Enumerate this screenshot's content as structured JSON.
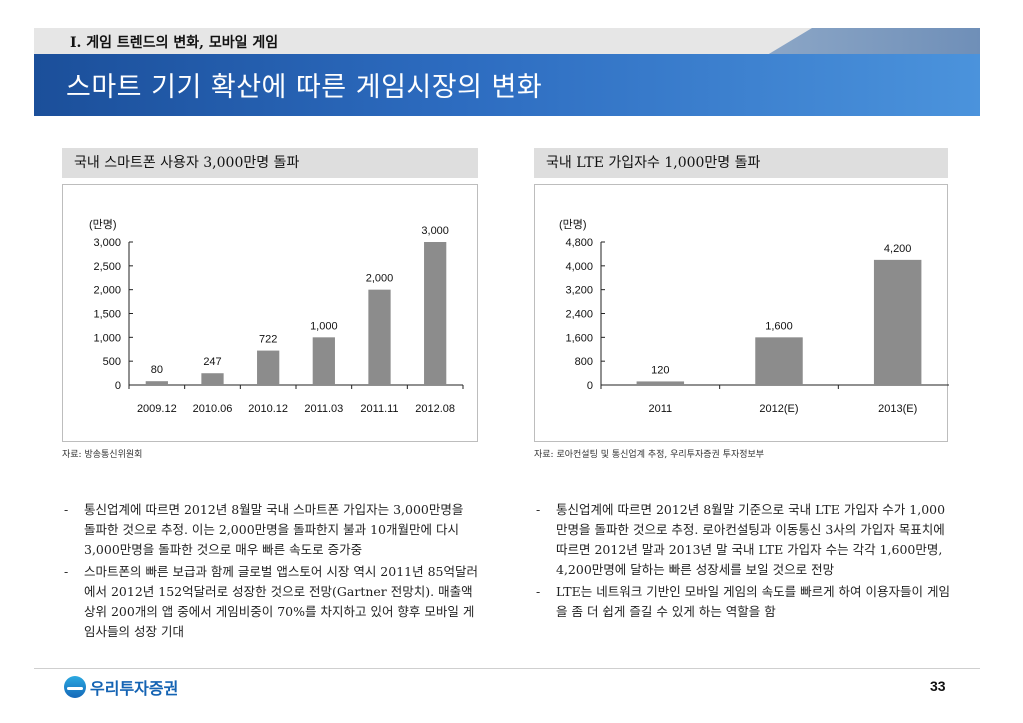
{
  "section": {
    "label": "Ⅰ. 게임 트렌드의 변화, 모바일 게임"
  },
  "title": "스마트 기기 확산에 따른 게임시장의 변화",
  "left_panel": {
    "heading": "국내 스마트폰 사용자 3,000만명 돌파",
    "source": "자료: 방송통신위원회",
    "bullets": [
      "통신업계에 따르면 2012년 8월말 국내 스마트폰 가입자는 3,000만명을 돌파한 것으로 추정. 이는 2,000만명을 돌파한지 불과 10개월만에 다시 3,000만명을 돌파한 것으로 매우 빠른 속도로 증가중",
      "스마트폰의 빠른 보급과 함께 글로벌 앱스토어 시장 역시 2011년 85억달러에서 2012년 152억달러로 성장한 것으로 전망(Gartner 전망치). 매출액 상위 200개의 앱 중에서 게임비중이 70%를 차지하고 있어 향후 모바일 게임사들의 성장 기대"
    ]
  },
  "right_panel": {
    "heading": "국내 LTE 가입자수 1,000만명 돌파",
    "source": "자료: 로아컨설팅 및 통신업계 추정, 우리투자증권 투자정보부",
    "bullets": [
      "통신업계에 따르면 2012년 8월말 기준으로 국내 LTE 가입자 수가 1,000만명을 돌파한 것으로 추정. 로아컨설팅과 이동통신 3사의 가입자 목표치에 따르면 2012년 말과 2013년 말 국내 LTE 가입자 수는 각각 1,600만명, 4,200만명에 달하는 빠른 성장세를 보일 것으로 전망",
      "LTE는 네트워크 기반인 모바일 게임의 속도를 빠르게 하여 이용자들이 게임을 좀 더 쉽게 즐길 수 있게 하는 역할을 함"
    ]
  },
  "chart_data": [
    {
      "type": "bar",
      "ylabel": "(만명)",
      "categories": [
        "2009.12",
        "2010.06",
        "2010.12",
        "2011.03",
        "2011.11",
        "2012.08"
      ],
      "values": [
        80,
        247,
        722,
        1000,
        2000,
        3000
      ],
      "value_labels": [
        "80",
        "247",
        "722",
        "1,000",
        "2,000",
        "3,000"
      ],
      "yticks": [
        "0",
        "500",
        "1,000",
        "1,500",
        "2,000",
        "2,500",
        "3,000"
      ],
      "ylim": [
        0,
        3000
      ],
      "bar_color": "#8c8c8c"
    },
    {
      "type": "bar",
      "ylabel": "(만명)",
      "categories": [
        "2011",
        "2012(E)",
        "2013(E)"
      ],
      "values": [
        120,
        1600,
        4200
      ],
      "value_labels": [
        "120",
        "1,600",
        "4,200"
      ],
      "yticks": [
        "0",
        "800",
        "1,600",
        "2,400",
        "3,200",
        "4,000",
        "4,800"
      ],
      "ylim": [
        0,
        4800
      ],
      "bar_color": "#8c8c8c"
    }
  ],
  "footer": {
    "logo_text": "우리투자증권",
    "logo_icon": "wave-circle-icon",
    "page_number": "33"
  }
}
